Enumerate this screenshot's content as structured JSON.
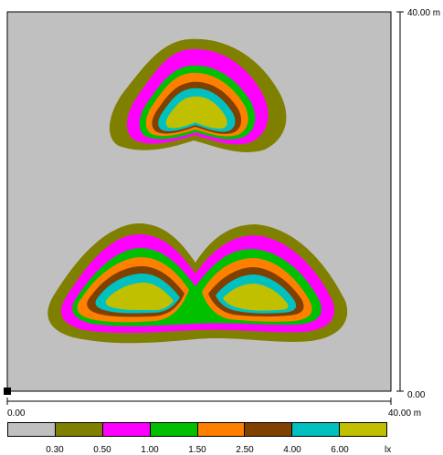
{
  "scale": {
    "x_start": "0.00",
    "x_end": "40.00 m",
    "y_start": "0.00",
    "y_end": "40.00 m"
  },
  "legend": {
    "bands": [
      "#c0c0c0",
      "#808000",
      "#ff00ff",
      "#00c000",
      "#ff8000",
      "#804000",
      "#00c0c0",
      "#c0c000"
    ],
    "thresholds": [
      "0.30",
      "0.50",
      "1.00",
      "1.50",
      "2.50",
      "4.00",
      "6.00"
    ],
    "unit": "lx"
  }
}
